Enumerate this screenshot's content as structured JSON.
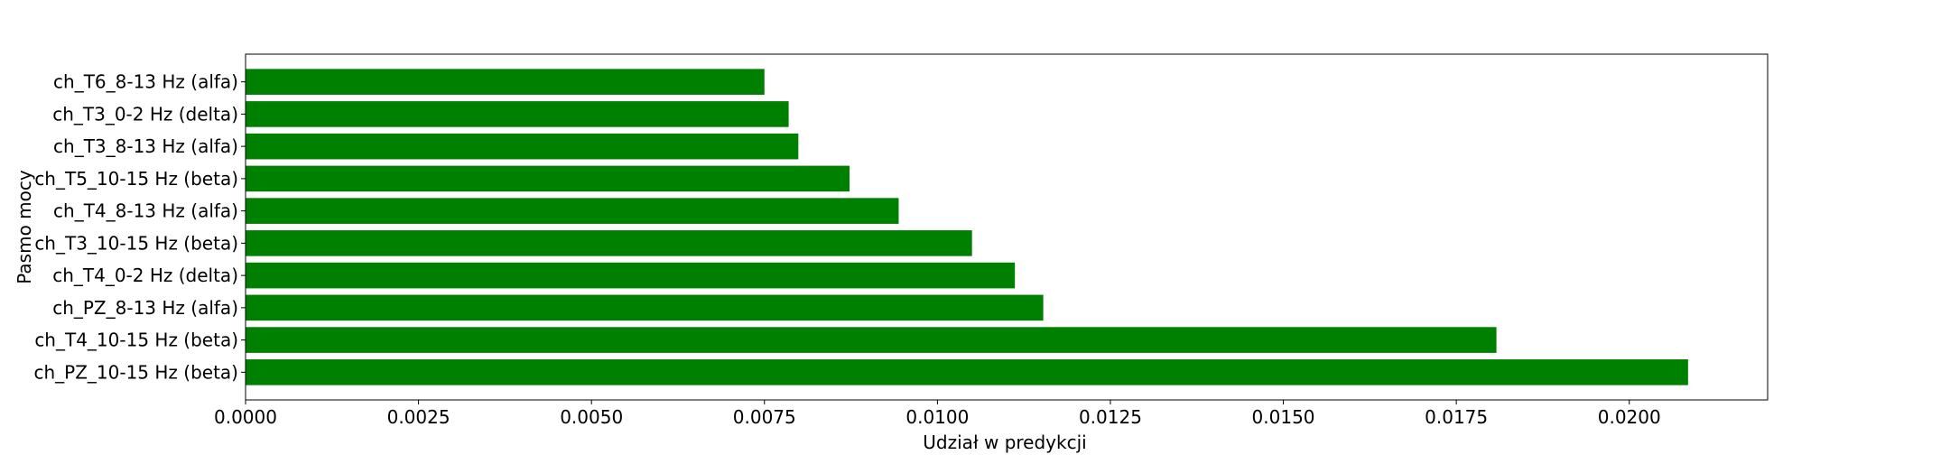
{
  "chart_data": {
    "type": "bar",
    "orientation": "horizontal",
    "categories": [
      "ch_PZ_10-15 Hz (beta)",
      "ch_T4_10-15 Hz (beta)",
      "ch_PZ_8-13 Hz (alfa)",
      "ch_T4_0-2 Hz (delta)",
      "ch_T3_10-15 Hz (beta)",
      "ch_T4_8-13 Hz (alfa)",
      "ch_T5_10-15 Hz (beta)",
      "ch_T3_8-13 Hz (alfa)",
      "ch_T3_0-2 Hz (delta)",
      "ch_T6_8-13 Hz (alfa)"
    ],
    "values": [
      0.02085,
      0.01808,
      0.01153,
      0.01112,
      0.0105,
      0.00944,
      0.00873,
      0.00799,
      0.00785,
      0.0075
    ],
    "xlabel": "Udział w predykcji",
    "ylabel": "Pasmo mocy",
    "xlim": [
      0,
      0.022
    ],
    "xticks": [
      "0.0000",
      "0.0025",
      "0.0050",
      "0.0075",
      "0.0100",
      "0.0125",
      "0.0150",
      "0.0175",
      "0.0200"
    ],
    "tick_values": [
      0,
      0.0025,
      0.005,
      0.0075,
      0.01,
      0.0125,
      0.015,
      0.0175,
      0.02
    ],
    "bar_color": "#008000",
    "grid": false
  }
}
